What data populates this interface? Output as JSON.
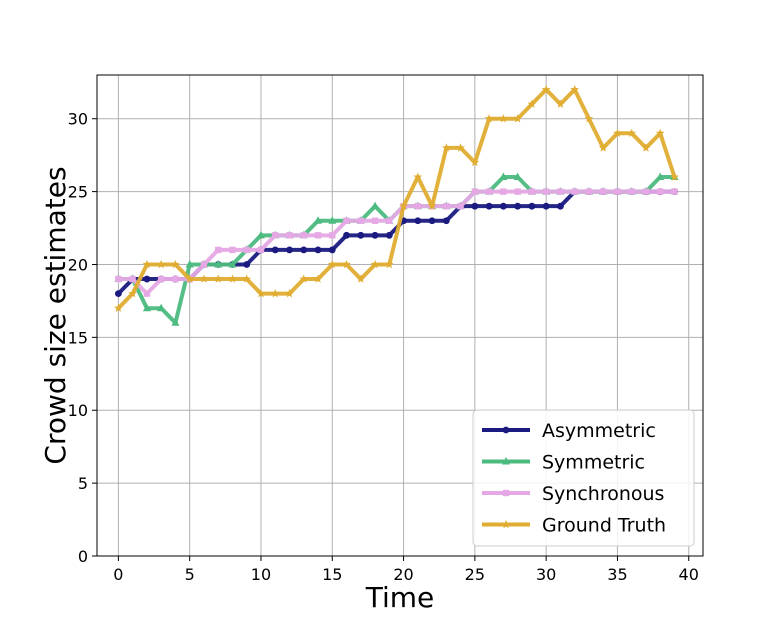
{
  "chart_data": {
    "type": "line",
    "xlabel": "Time",
    "ylabel": "Crowd size estimates",
    "xlim": [
      -1.5,
      41
    ],
    "ylim": [
      0,
      33
    ],
    "xticks": [
      0,
      5,
      10,
      15,
      20,
      25,
      30,
      35,
      40
    ],
    "yticks": [
      0,
      5,
      10,
      15,
      20,
      25,
      30
    ],
    "xtick_labels": [
      "0",
      "5",
      "10",
      "15",
      "20",
      "25",
      "30",
      "35",
      "40"
    ],
    "ytick_labels": [
      "0",
      "5",
      "10",
      "15",
      "20",
      "25",
      "30"
    ],
    "grid": true,
    "legend_position": "lower-right",
    "x": [
      0,
      1,
      2,
      3,
      4,
      5,
      6,
      7,
      8,
      9,
      10,
      11,
      12,
      13,
      14,
      15,
      16,
      17,
      18,
      19,
      20,
      21,
      22,
      23,
      24,
      25,
      26,
      27,
      28,
      29,
      30,
      31,
      32,
      33,
      34,
      35,
      36,
      37,
      38,
      39
    ],
    "series": [
      {
        "name": "Asymmetric",
        "color": "#1a1a80",
        "marker": "circle",
        "values": [
          18,
          19,
          19,
          19,
          19,
          19,
          20,
          20,
          20,
          20,
          21,
          21,
          21,
          21,
          21,
          21,
          22,
          22,
          22,
          22,
          23,
          23,
          23,
          23,
          24,
          24,
          24,
          24,
          24,
          24,
          24,
          24,
          25,
          25,
          25,
          25,
          25,
          25,
          25,
          25
        ]
      },
      {
        "name": "Symmetric",
        "color": "#4cbb7f",
        "marker": "triangle",
        "values": [
          19,
          19,
          17,
          17,
          16,
          20,
          20,
          20,
          20,
          21,
          22,
          22,
          22,
          22,
          23,
          23,
          23,
          23,
          24,
          23,
          24,
          24,
          24,
          24,
          24,
          25,
          25,
          26,
          26,
          25,
          25,
          25,
          25,
          25,
          25,
          25,
          25,
          25,
          26,
          26
        ]
      },
      {
        "name": "Synchronous",
        "color": "#e5a8e5",
        "marker": "square",
        "values": [
          19,
          19,
          18,
          19,
          19,
          19,
          20,
          21,
          21,
          21,
          21,
          22,
          22,
          22,
          22,
          22,
          23,
          23,
          23,
          23,
          24,
          24,
          24,
          24,
          24,
          25,
          25,
          25,
          25,
          25,
          25,
          25,
          25,
          25,
          25,
          25,
          25,
          25,
          25,
          25
        ]
      },
      {
        "name": "Ground Truth",
        "color": "#e0ad32",
        "marker": "star",
        "values": [
          17,
          18,
          20,
          20,
          20,
          19,
          19,
          19,
          19,
          19,
          18,
          18,
          18,
          19,
          19,
          20,
          20,
          19,
          20,
          20,
          24,
          26,
          24,
          28,
          28,
          27,
          30,
          30,
          30,
          31,
          32,
          31,
          32,
          30,
          28,
          29,
          29,
          28,
          29,
          26
        ]
      }
    ]
  }
}
